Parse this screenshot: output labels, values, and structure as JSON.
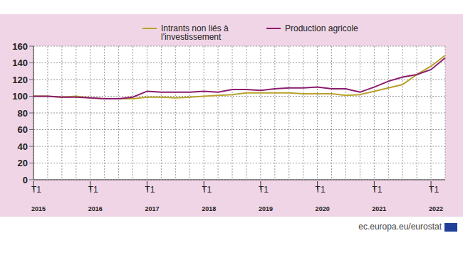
{
  "chart_data": {
    "type": "line",
    "source": "ec.europa.eu/eurostat",
    "categories": [
      "T1 2015",
      null,
      null,
      null,
      "T1 2016",
      null,
      null,
      null,
      "T1 2017",
      null,
      null,
      null,
      "T1 2018",
      null,
      null,
      null,
      "T1 2019",
      null,
      null,
      null,
      "T1 2020",
      null,
      null,
      null,
      "T1 2021",
      null,
      null,
      null,
      "T1 2022",
      null
    ],
    "series": [
      {
        "name": "Intrants non liés à l'investissement",
        "color": "#b8a22a",
        "values": [
          100,
          100,
          99,
          100,
          98,
          97,
          97,
          97,
          99,
          99,
          98,
          99,
          100,
          101,
          102,
          104,
          104,
          104,
          104,
          103,
          103,
          103,
          101,
          102,
          106,
          110,
          114,
          126,
          136,
          149
        ]
      },
      {
        "name": "Production agricole",
        "color": "#8c1c6e",
        "values": [
          100,
          100,
          99,
          99,
          98,
          97,
          97,
          99,
          106,
          105,
          105,
          105,
          106,
          105,
          108,
          108,
          107,
          109,
          110,
          110,
          111,
          109,
          109,
          105,
          111,
          118,
          123,
          126,
          132,
          146
        ]
      }
    ],
    "ylim": [
      0,
      160
    ],
    "yticks": [
      0,
      20,
      40,
      60,
      80,
      100,
      120,
      140,
      160
    ],
    "grid": true,
    "legend": "top"
  }
}
